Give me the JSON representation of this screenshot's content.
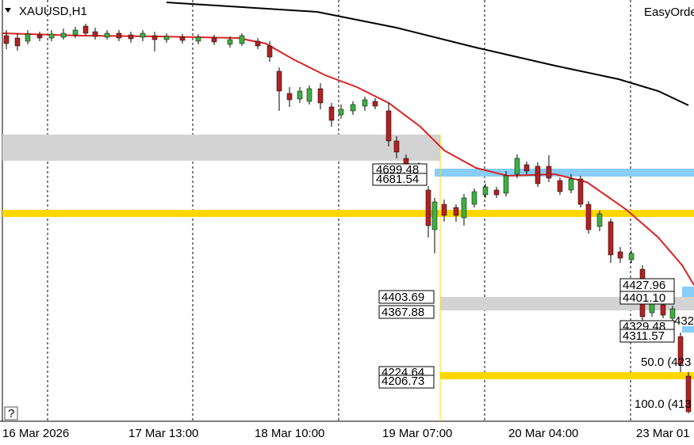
{
  "header": {
    "symbol": "XAUUSD,H1",
    "panel": "EasyOrde",
    "help": "?"
  },
  "price_labels": [
    "4699.48",
    "4681.54",
    "4403.69",
    "4367.88",
    "4224.64",
    "4206.73",
    "4427.96",
    "4401.10",
    "4329.48",
    "4311.57"
  ],
  "side_label": "432",
  "fib_labels": [
    "50.0 (423",
    "100.0 (413"
  ],
  "time_labels": [
    "16 Mar 2026",
    "17 Mar 13:00",
    "18 Mar 10:00",
    "19 Mar 07:00",
    "20 Mar 04:00",
    "23 Mar 01"
  ]
}
